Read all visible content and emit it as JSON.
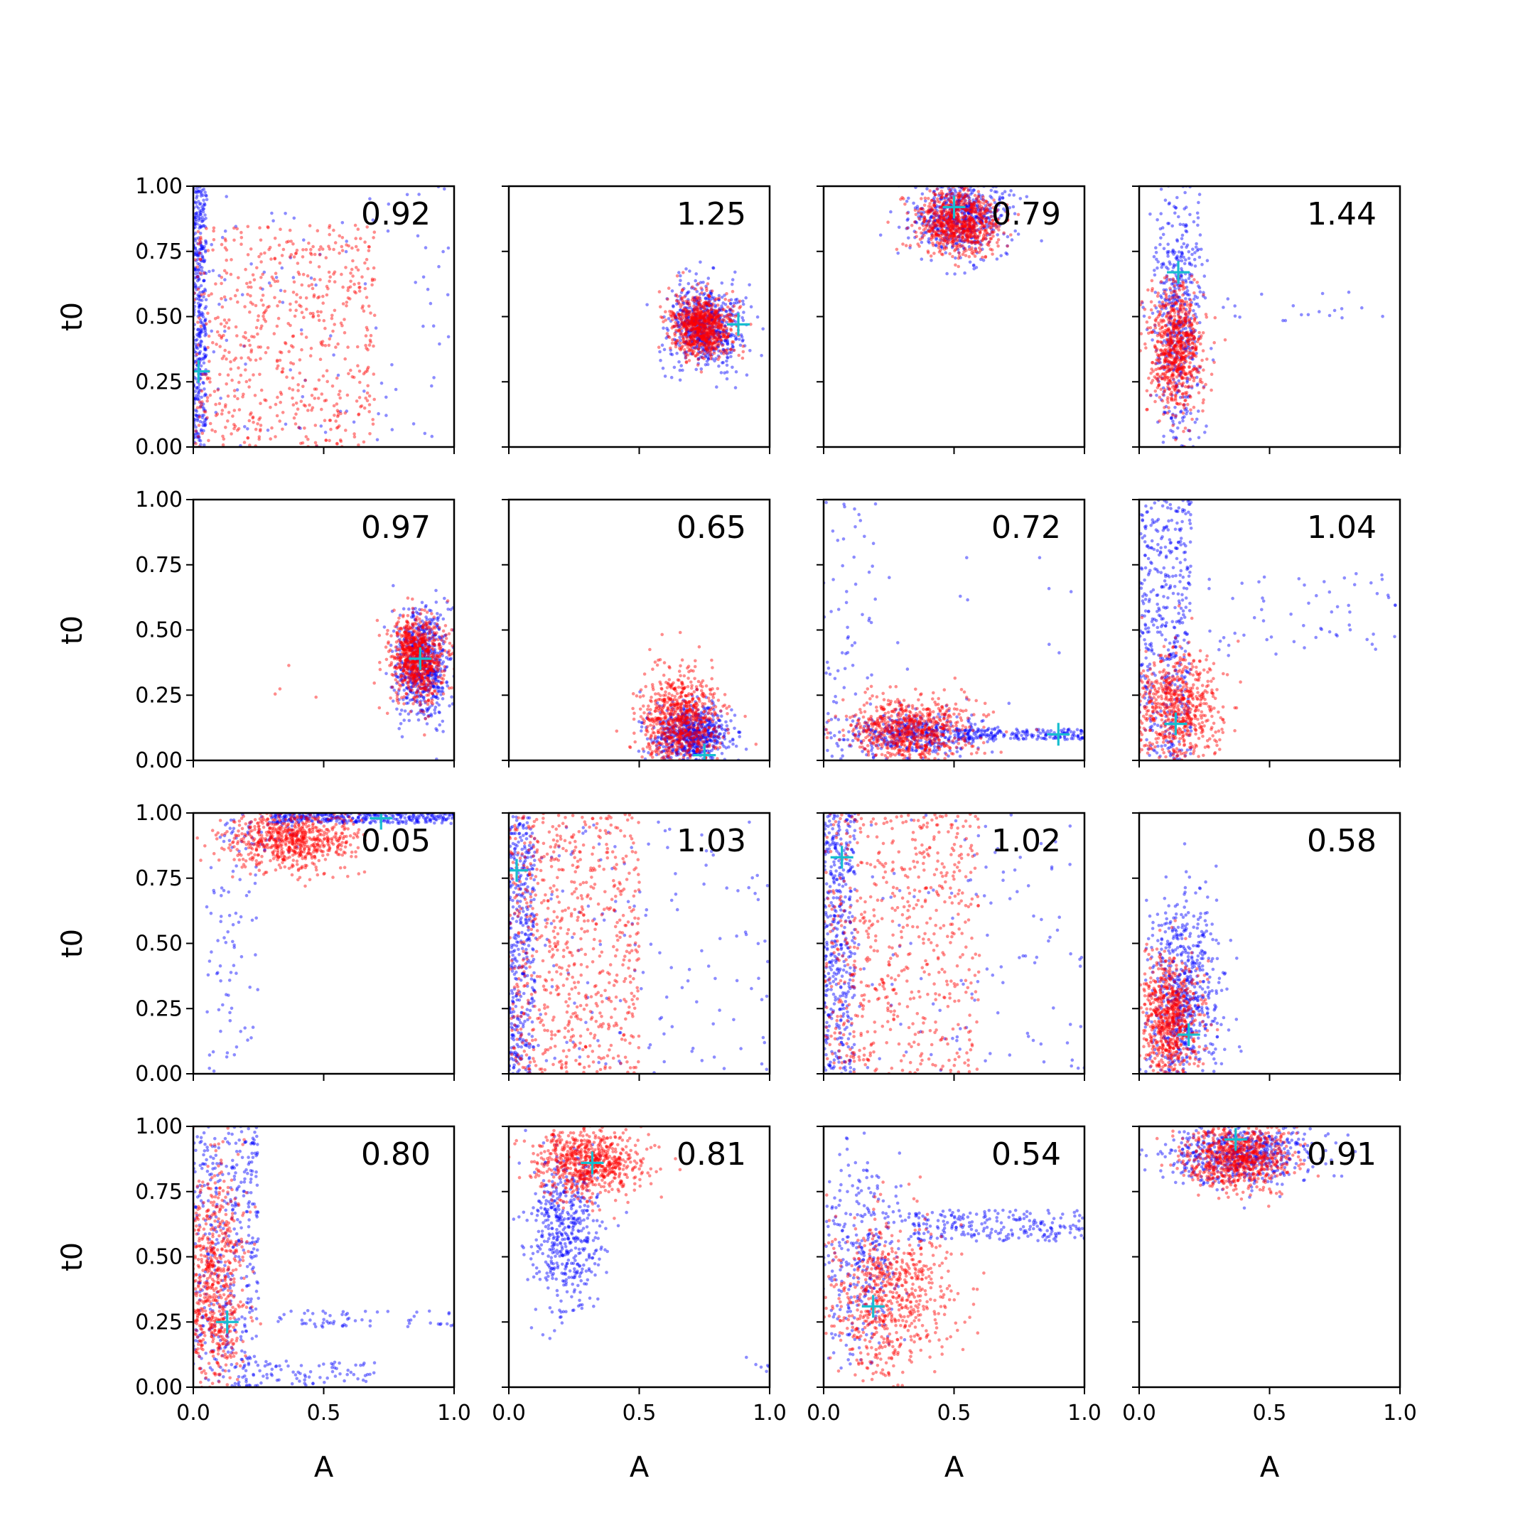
{
  "chart_data": {
    "type": "scatter",
    "grid": false,
    "xlabel": "A",
    "ylabel": "t0",
    "xlim": [
      0,
      1
    ],
    "ylim": [
      0,
      1
    ],
    "x_ticks": [
      "0.0",
      "0.5",
      "1.0"
    ],
    "y_ticks": [
      "0.00",
      "0.25",
      "0.50",
      "0.75",
      "1.00"
    ],
    "colors": {
      "series_blue": "#0000ff",
      "series_red": "#ff0000",
      "marker": "#17becf"
    },
    "panels": [
      {
        "label": "0.92",
        "marker": [
          0.02,
          0.29
        ],
        "blue": [
          {
            "x": [
              0.0,
              0.05
            ],
            "y": [
              0.0,
              1.0
            ],
            "n": 380
          },
          {
            "x": [
              0.0,
              1.0
            ],
            "y": [
              0.0,
              1.0
            ],
            "n": 110
          }
        ],
        "red": [
          {
            "x": [
              0.0,
              0.7
            ],
            "y": [
              0.0,
              0.85
            ],
            "n": 620
          }
        ]
      },
      {
        "label": "1.25",
        "marker": [
          0.88,
          0.47
        ],
        "blue": [
          {
            "c": [
              0.75,
              0.46
            ],
            "s": [
              0.07,
              0.08
            ],
            "n": 650
          }
        ],
        "red": [
          {
            "c": [
              0.74,
              0.46
            ],
            "s": [
              0.06,
              0.06
            ],
            "n": 780
          }
        ]
      },
      {
        "label": "0.79",
        "marker": [
          0.5,
          0.92
        ],
        "blue": [
          {
            "c": [
              0.53,
              0.88
            ],
            "s": [
              0.09,
              0.07
            ],
            "n": 600
          }
        ],
        "red": [
          {
            "c": [
              0.52,
              0.86
            ],
            "s": [
              0.08,
              0.06
            ],
            "n": 780
          }
        ]
      },
      {
        "label": "1.44",
        "marker": [
          0.15,
          0.67
        ],
        "blue": [
          {
            "c": [
              0.15,
              0.5
            ],
            "s": [
              0.05,
              0.25
            ],
            "n": 520
          },
          {
            "x": [
              0.3,
              0.95
            ],
            "y": [
              0.48,
              0.6
            ],
            "n": 20
          }
        ],
        "red": [
          {
            "c": [
              0.14,
              0.38
            ],
            "s": [
              0.05,
              0.12
            ],
            "n": 720
          }
        ]
      },
      {
        "label": "0.97",
        "marker": [
          0.87,
          0.39
        ],
        "blue": [
          {
            "c": [
              0.88,
              0.37
            ],
            "s": [
              0.05,
              0.11
            ],
            "n": 650
          }
        ],
        "red": [
          {
            "c": [
              0.86,
              0.39
            ],
            "s": [
              0.05,
              0.08
            ],
            "n": 780
          },
          {
            "x": [
              0.25,
              0.5
            ],
            "y": [
              0.1,
              0.45
            ],
            "n": 4
          }
        ]
      },
      {
        "label": "0.65",
        "marker": [
          0.75,
          0.02
        ],
        "blue": [
          {
            "c": [
              0.7,
              0.1
            ],
            "s": [
              0.07,
              0.06
            ],
            "n": 650
          }
        ],
        "red": [
          {
            "c": [
              0.66,
              0.15
            ],
            "s": [
              0.08,
              0.1
            ],
            "n": 780
          }
        ]
      },
      {
        "label": "0.72",
        "marker": [
          0.9,
          0.1
        ],
        "blue": [
          {
            "c": [
              0.35,
              0.1
            ],
            "s": [
              0.14,
              0.04
            ],
            "n": 430
          },
          {
            "x": [
              0.5,
              1.0
            ],
            "y": [
              0.08,
              0.12
            ],
            "n": 180
          },
          {
            "x": [
              0.0,
              0.2
            ],
            "y": [
              0.0,
              1.0
            ],
            "n": 70
          },
          {
            "x": [
              0.2,
              0.95
            ],
            "y": [
              0.2,
              0.95
            ],
            "n": 12
          }
        ],
        "red": [
          {
            "c": [
              0.33,
              0.12
            ],
            "s": [
              0.12,
              0.06
            ],
            "n": 700
          }
        ]
      },
      {
        "label": "1.04",
        "marker": [
          0.14,
          0.14
        ],
        "blue": [
          {
            "x": [
              0.0,
              0.2
            ],
            "y": [
              0.0,
              1.0
            ],
            "n": 450
          },
          {
            "x": [
              0.25,
              1.0
            ],
            "y": [
              0.4,
              0.72
            ],
            "n": 60
          }
        ],
        "red": [
          {
            "c": [
              0.14,
              0.2
            ],
            "s": [
              0.09,
              0.1
            ],
            "n": 680
          }
        ]
      },
      {
        "label": "0.05",
        "marker": [
          0.72,
          0.98
        ],
        "blue": [
          {
            "x": [
              0.3,
              1.0
            ],
            "y": [
              0.96,
              1.0
            ],
            "n": 320
          },
          {
            "x": [
              0.05,
              0.25
            ],
            "y": [
              0.0,
              0.8
            ],
            "n": 70
          },
          {
            "x": [
              0.1,
              0.4
            ],
            "y": [
              0.85,
              1.0
            ],
            "n": 60
          }
        ],
        "red": [
          {
            "c": [
              0.38,
              0.9
            ],
            "s": [
              0.12,
              0.06
            ],
            "n": 700
          }
        ]
      },
      {
        "label": "1.03",
        "marker": [
          0.03,
          0.78
        ],
        "blue": [
          {
            "x": [
              0.0,
              0.1
            ],
            "y": [
              0.0,
              1.0
            ],
            "n": 380
          },
          {
            "x": [
              0.1,
              1.0
            ],
            "y": [
              0.0,
              1.0
            ],
            "n": 140
          }
        ],
        "red": [
          {
            "x": [
              0.0,
              0.5
            ],
            "y": [
              0.0,
              1.0
            ],
            "n": 700
          }
        ]
      },
      {
        "label": "1.02",
        "marker": [
          0.07,
          0.83
        ],
        "blue": [
          {
            "x": [
              0.0,
              0.12
            ],
            "y": [
              0.0,
              1.0
            ],
            "n": 420
          },
          {
            "x": [
              0.12,
              1.0
            ],
            "y": [
              0.0,
              1.0
            ],
            "n": 110
          }
        ],
        "red": [
          {
            "x": [
              0.0,
              0.6
            ],
            "y": [
              0.0,
              1.0
            ],
            "n": 620
          }
        ]
      },
      {
        "label": "0.58",
        "marker": [
          0.19,
          0.15
        ],
        "blue": [
          {
            "c": [
              0.17,
              0.3
            ],
            "s": [
              0.07,
              0.2
            ],
            "n": 650
          }
        ],
        "red": [
          {
            "c": [
              0.12,
              0.22
            ],
            "s": [
              0.06,
              0.12
            ],
            "n": 720
          }
        ]
      },
      {
        "label": "0.80",
        "marker": [
          0.13,
          0.25
        ],
        "blue": [
          {
            "x": [
              0.0,
              0.25
            ],
            "y": [
              0.0,
              1.0
            ],
            "n": 430
          },
          {
            "x": [
              0.3,
              1.0
            ],
            "y": [
              0.23,
              0.3
            ],
            "n": 60
          },
          {
            "x": [
              0.2,
              0.7
            ],
            "y": [
              0.0,
              0.1
            ],
            "n": 80
          }
        ],
        "red": [
          {
            "c": [
              0.08,
              0.4
            ],
            "s": [
              0.06,
              0.22
            ],
            "n": 700
          }
        ]
      },
      {
        "label": "0.81",
        "marker": [
          0.32,
          0.86
        ],
        "blue": [
          {
            "c": [
              0.22,
              0.6
            ],
            "s": [
              0.07,
              0.15
            ],
            "n": 500
          },
          {
            "x": [
              0.9,
              1.0
            ],
            "y": [
              0.05,
              0.12
            ],
            "n": 6
          }
        ],
        "red": [
          {
            "c": [
              0.3,
              0.87
            ],
            "s": [
              0.1,
              0.07
            ],
            "n": 720
          }
        ]
      },
      {
        "label": "0.54",
        "marker": [
          0.19,
          0.31
        ],
        "blue": [
          {
            "x": [
              0.3,
              1.0
            ],
            "y": [
              0.56,
              0.68
            ],
            "n": 230
          },
          {
            "c": [
              0.15,
              0.5
            ],
            "s": [
              0.08,
              0.2
            ],
            "n": 320
          }
        ],
        "red": [
          {
            "c": [
              0.25,
              0.35
            ],
            "s": [
              0.12,
              0.15
            ],
            "n": 680
          }
        ]
      },
      {
        "label": "0.91",
        "marker": [
          0.37,
          0.95
        ],
        "blue": [
          {
            "c": [
              0.4,
              0.9
            ],
            "s": [
              0.15,
              0.06
            ],
            "n": 600
          }
        ],
        "red": [
          {
            "c": [
              0.38,
              0.88
            ],
            "s": [
              0.1,
              0.06
            ],
            "n": 760
          }
        ]
      }
    ]
  }
}
